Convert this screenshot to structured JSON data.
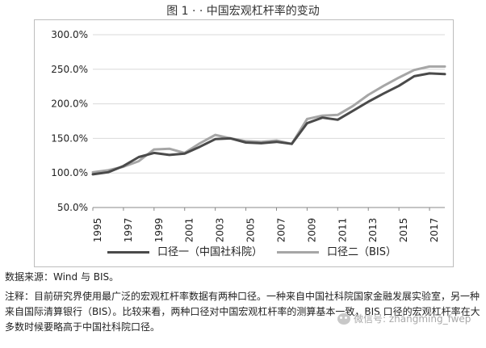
{
  "title": "图 1 · · 中国宏观杠杆率的变动",
  "legend": {
    "series1": "口径一（中国社科院）",
    "series2": "口径二（BIS）"
  },
  "source": "数据来源：Wind 与 BIS。",
  "note": "注释：目前研究界使用最广泛的宏观杠杆率数据有两种口径。一种来自中国社科院国家金融发展实验室，另一种来自国际清算银行（BIS）。比较来看，两种口径对中国宏观杠杆率的测算基本一致，BIS 口径的宏观杠杆率在大多数时候要略高于中国社科院口径。",
  "watermark": "微信号: zhangming_fwep",
  "chart_data": {
    "type": "line",
    "x_tick_labels": [
      "1995",
      "1997",
      "1999",
      "2001",
      "2003",
      "2005",
      "2007",
      "2009",
      "2011",
      "2013",
      "2015",
      "2017"
    ],
    "y_tick_labels": [
      "50.0%",
      "100.0%",
      "150.0%",
      "200.0%",
      "250.0%",
      "300.0%"
    ],
    "ylim": [
      50,
      300
    ],
    "xlim": [
      1995,
      2018
    ],
    "grid": "horizontal",
    "legend_position": "bottom",
    "colors": {
      "series1": "#4a4a4a",
      "series2": "#a6a6a6"
    },
    "series": [
      {
        "name": "口径一（中国社科院）",
        "x": [
          1995,
          1996,
          1997,
          1998,
          1999,
          2000,
          2001,
          2002,
          2003,
          2004,
          2005,
          2006,
          2007,
          2008,
          2009,
          2010,
          2011,
          2012,
          2013,
          2014,
          2015,
          2016,
          2017,
          2018
        ],
        "values": [
          98,
          101,
          110,
          123,
          129,
          126,
          128,
          138,
          149,
          150,
          144,
          143,
          145,
          142,
          172,
          180,
          177,
          190,
          203,
          215,
          226,
          240,
          244,
          243
        ]
      },
      {
        "name": "口径二（BIS）",
        "x": [
          1995,
          1996,
          1997,
          1998,
          1999,
          2000,
          2001,
          2002,
          2003,
          2004,
          2005,
          2006,
          2007,
          2008,
          2009,
          2010,
          2011,
          2012,
          2013,
          2014,
          2015,
          2016,
          2017,
          2018
        ],
        "values": [
          101,
          104,
          109,
          117,
          134,
          135,
          129,
          143,
          155,
          150,
          146,
          145,
          147,
          142,
          178,
          183,
          184,
          197,
          213,
          226,
          238,
          249,
          254,
          254
        ]
      }
    ]
  }
}
